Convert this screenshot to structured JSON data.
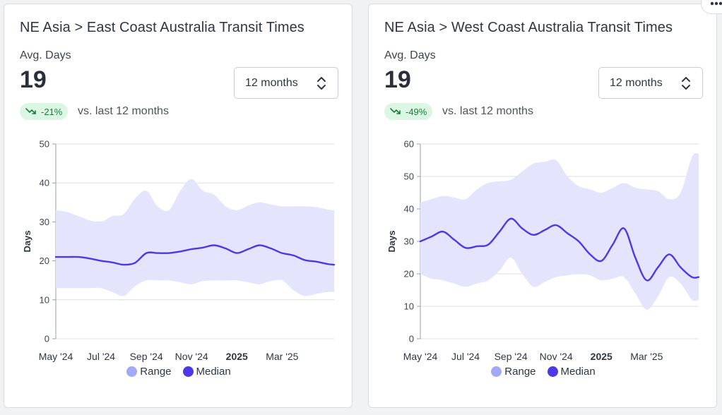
{
  "cards": [
    {
      "title": "NE Asia > East Coast Australia Transit Times",
      "metric_label": "Avg. Days",
      "metric_value": "19",
      "period": "12 months",
      "change": "-21%",
      "change_context": "vs. last 12 months",
      "chart_data": {
        "type": "area",
        "ylabel": "Days",
        "ylim": [
          0,
          50
        ],
        "yticks": [
          0,
          10,
          20,
          30,
          40,
          50
        ],
        "x_tick_labels": [
          "May '24",
          "Jul '24",
          "Sep '24",
          "Nov '24",
          "2025",
          "Mar '25"
        ],
        "x": [
          0,
          0.5,
          1,
          1.5,
          2,
          2.5,
          3,
          3.5,
          4,
          4.5,
          5,
          5.5,
          6,
          6.5,
          7,
          7.5,
          8,
          8.5,
          9,
          9.5,
          10,
          10.5,
          11,
          11.5,
          12,
          12.3
        ],
        "series": [
          {
            "name": "Median",
            "values": [
              21,
              21,
              21,
              20.6,
              20,
              19.6,
              19,
              19.5,
              22,
              22,
              22,
              22.4,
              23,
              23.4,
              24,
              23.2,
              22,
              23,
              24,
              23.2,
              22,
              21.4,
              20.2,
              19.8,
              19.2,
              19
            ]
          },
          {
            "name": "Range",
            "upper": [
              33,
              32.5,
              31.5,
              30.4,
              30,
              31.5,
              32,
              36,
              38,
              34,
              33,
              38,
              41,
              38,
              37,
              34,
              33,
              34.2,
              35,
              34.5,
              34,
              34,
              34,
              33.8,
              33.2,
              33
            ],
            "lower": [
              13,
              13,
              13,
              13,
              13,
              12,
              11,
              13.5,
              15,
              15,
              15,
              14.5,
              14,
              14.8,
              15,
              15,
              15,
              14.5,
              14,
              14.8,
              15,
              12.5,
              11,
              11.5,
              12,
              12
            ]
          }
        ],
        "legend": [
          "Range",
          "Median"
        ],
        "legend_position": "bottom-center",
        "grid": true
      }
    },
    {
      "title": "NE Asia > West Coast Australia Transit Times",
      "metric_label": "Avg. Days",
      "metric_value": "19",
      "period": "12 months",
      "change": "-49%",
      "change_context": "vs. last 12 months",
      "chart_data": {
        "type": "area",
        "ylabel": "Days",
        "ylim": [
          0,
          60
        ],
        "yticks": [
          0,
          10,
          20,
          30,
          40,
          50,
          60
        ],
        "x_tick_labels": [
          "May '24",
          "Jul '24",
          "Sep '24",
          "Nov '24",
          "2025",
          "Mar '25"
        ],
        "x": [
          0,
          0.5,
          1,
          1.5,
          2,
          2.5,
          3,
          3.5,
          4,
          4.5,
          5,
          5.5,
          6,
          6.5,
          7,
          7.5,
          8,
          8.5,
          9,
          9.5,
          10,
          10.5,
          11,
          11.5,
          12,
          12.3
        ],
        "series": [
          {
            "name": "Median",
            "values": [
              30,
              31.5,
              33,
              30.5,
              28,
              28.5,
              29,
              33,
              37,
              34,
              32,
              33.5,
              35,
              32.5,
              30,
              26,
              24,
              29,
              34,
              25,
              18,
              22,
              26,
              22,
              19,
              19
            ]
          },
          {
            "name": "Range",
            "upper": [
              42,
              43,
              44,
              43.5,
              43,
              46,
              48,
              48.5,
              49,
              51.5,
              54,
              54.5,
              55,
              50,
              47,
              46,
              45,
              46.5,
              48,
              46.5,
              46,
              45.5,
              43,
              45,
              56,
              57
            ],
            "lower": [
              20,
              18.5,
              18,
              17,
              16,
              17,
              18,
              21,
              25,
              20,
              16,
              17.5,
              19,
              19.5,
              20,
              19.5,
              18,
              18.5,
              19,
              14,
              9,
              13,
              19,
              17,
              12,
              12
            ]
          }
        ],
        "legend": [
          "Range",
          "Median"
        ],
        "legend_position": "bottom-center",
        "grid": true
      }
    }
  ],
  "colors": {
    "range_fill": "#e4e4fc",
    "range_legend": "#a3a8f7",
    "median_line": "#4e37e6",
    "grid": "#dcdfe4",
    "axis_text": "#3d4350"
  }
}
